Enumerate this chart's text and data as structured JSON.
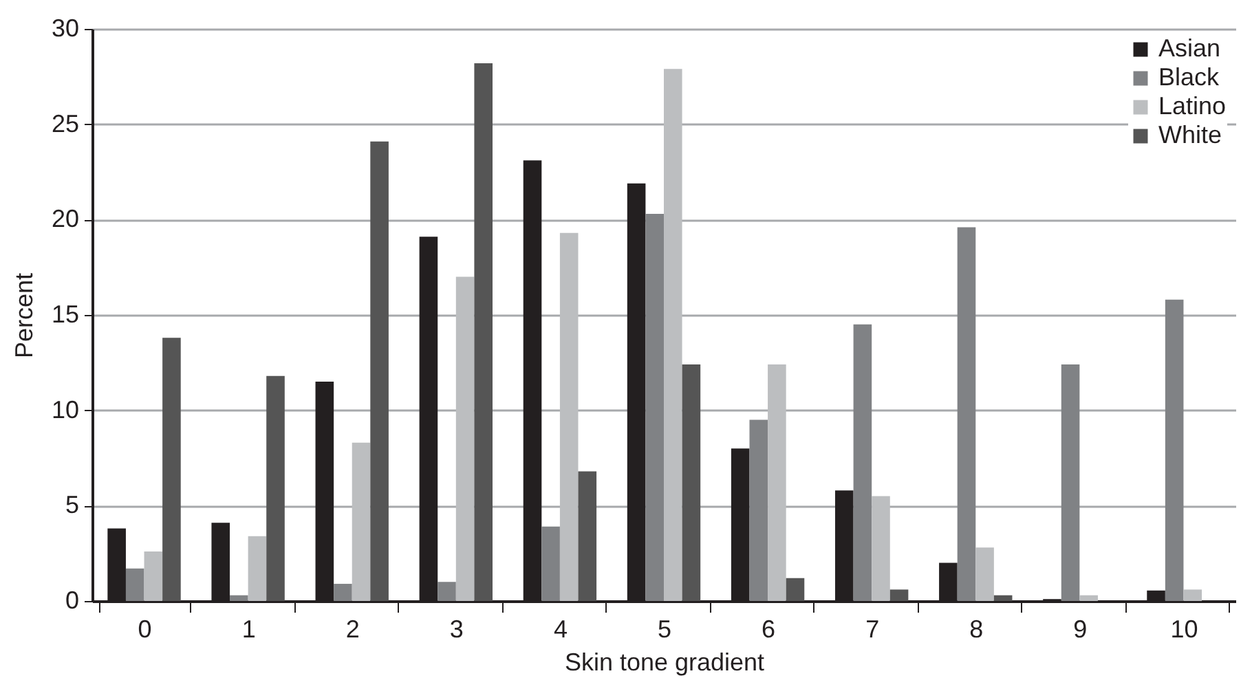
{
  "chart_data": {
    "type": "bar",
    "xlabel": "Skin tone gradient",
    "ylabel": "Percent",
    "categories": [
      "0",
      "1",
      "2",
      "3",
      "4",
      "5",
      "6",
      "7",
      "8",
      "9",
      "10"
    ],
    "series": [
      {
        "name": "Asian",
        "color": "#231f20",
        "values": [
          3.8,
          4.1,
          11.5,
          19.1,
          23.1,
          21.9,
          8.0,
          5.8,
          2.0,
          0.1,
          0.55
        ]
      },
      {
        "name": "Black",
        "color": "#808285",
        "values": [
          1.7,
          0.3,
          0.9,
          1.0,
          3.9,
          20.3,
          9.5,
          14.5,
          19.6,
          12.4,
          15.8
        ]
      },
      {
        "name": "Latino",
        "color": "#bcbec0",
        "values": [
          2.6,
          3.4,
          8.3,
          17.0,
          19.3,
          27.9,
          12.4,
          5.5,
          2.8,
          0.3,
          0.6
        ]
      },
      {
        "name": "White",
        "color": "#555555",
        "values": [
          13.8,
          11.8,
          24.1,
          28.2,
          6.8,
          12.4,
          1.2,
          0.6,
          0.3,
          0,
          0
        ]
      }
    ],
    "ylim": [
      0,
      30
    ],
    "yticks": [
      0,
      5,
      10,
      15,
      20,
      25,
      30
    ],
    "grid": "y",
    "legend": "top right"
  }
}
